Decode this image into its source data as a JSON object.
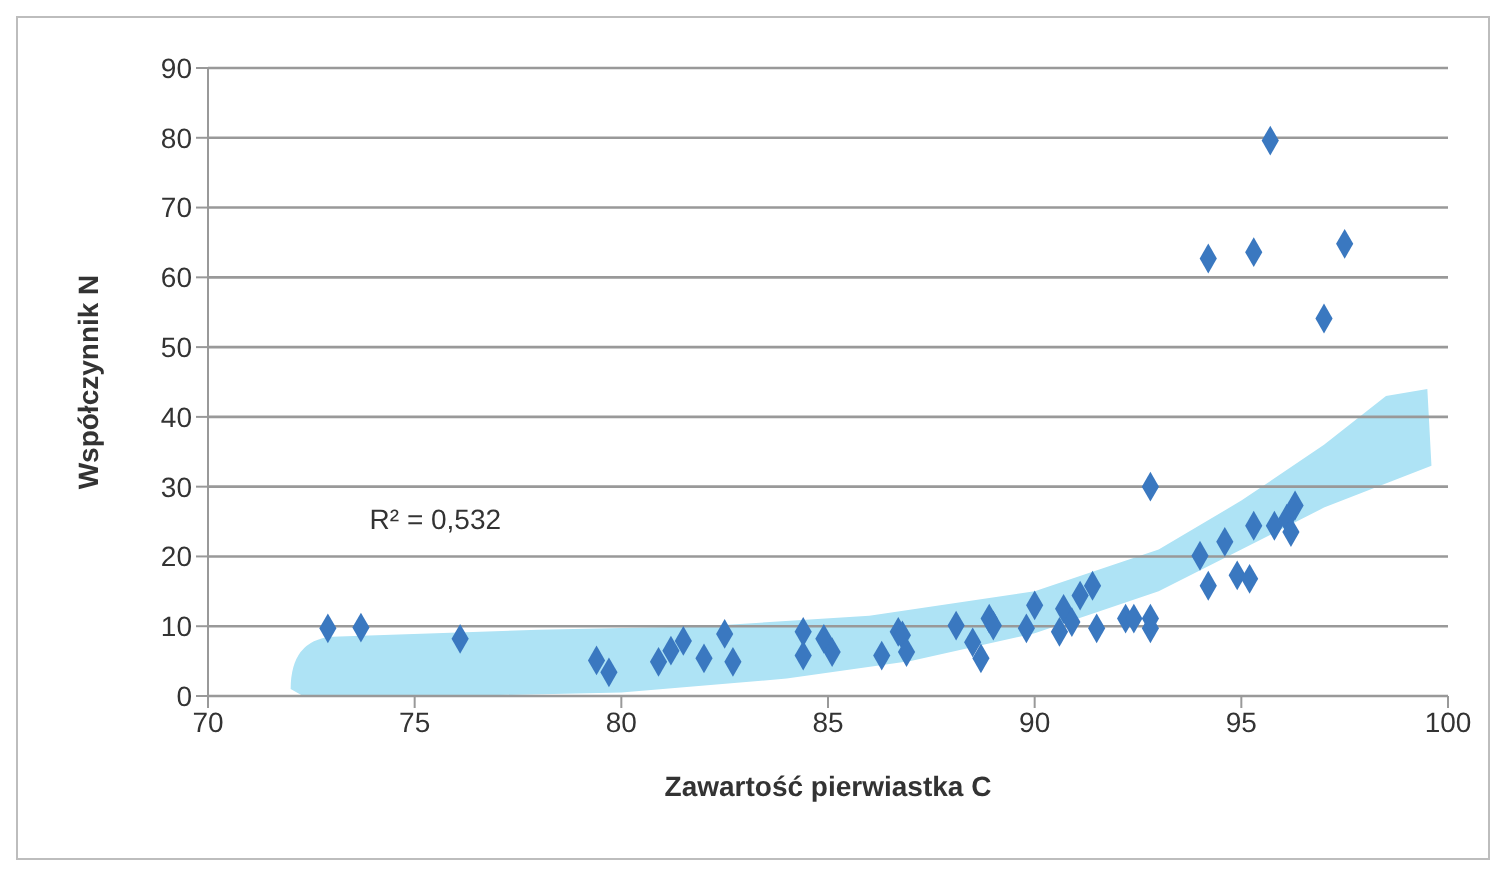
{
  "chart_data": {
    "type": "scatter",
    "xlabel": "Zawartość pierwiastka C",
    "ylabel": "Współczynnik N",
    "annotations": [
      "R² = 0,532"
    ],
    "x": [
      72.9,
      73.7,
      76.1,
      79.4,
      79.7,
      80.9,
      81.2,
      81.5,
      82.0,
      82.5,
      82.7,
      84.4,
      84.4,
      84.9,
      85.1,
      86.3,
      86.7,
      86.8,
      86.9,
      88.1,
      88.5,
      88.7,
      88.9,
      89.0,
      89.8,
      90.0,
      90.6,
      90.7,
      90.9,
      91.1,
      91.4,
      91.5,
      92.2,
      92.4,
      92.8,
      92.8,
      92.8,
      94.0,
      94.2,
      94.6,
      94.9,
      95.2,
      95.3,
      95.8,
      96.1,
      96.3,
      96.2,
      95.7,
      94.2,
      95.3,
      97.5,
      97.0
    ],
    "values": [
      9.7,
      9.8,
      8.2,
      5.1,
      3.4,
      4.9,
      6.5,
      7.9,
      5.4,
      8.9,
      4.9,
      9.2,
      5.8,
      8.2,
      6.3,
      5.8,
      9.2,
      8.7,
      6.3,
      10.1,
      7.7,
      5.4,
      11.1,
      10.1,
      9.7,
      13.0,
      9.2,
      12.5,
      10.6,
      14.4,
      15.8,
      9.7,
      11.1,
      11.1,
      9.7,
      11.1,
      30,
      20.1,
      15.8,
      22.1,
      17.3,
      16.8,
      24.4,
      24.4,
      25.4,
      27.3,
      23.5,
      79.6,
      62.7,
      63.6,
      64.8,
      54.1
    ],
    "color": "#3a78c0",
    "marker": "diamond",
    "grid": "y",
    "xlim": [
      70,
      100
    ],
    "xticks": [
      70,
      75,
      80,
      85,
      90,
      95,
      100
    ],
    "ylim": [
      0,
      90
    ],
    "yticks": [
      0,
      10,
      20,
      30,
      40,
      50,
      60,
      70,
      80,
      90
    ]
  }
}
